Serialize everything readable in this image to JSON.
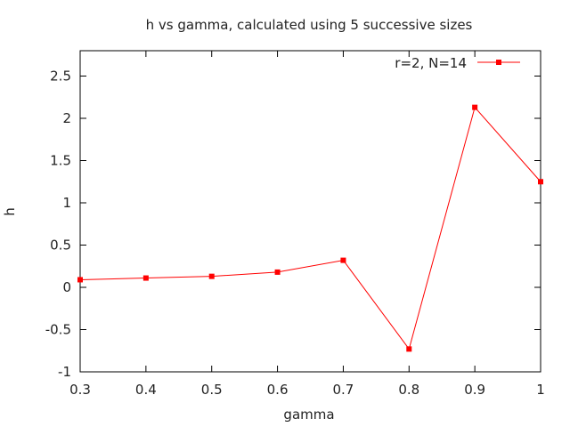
{
  "chart_data": {
    "type": "line",
    "title": "h vs gamma, calculated using 5 successive sizes",
    "xlabel": "gamma",
    "ylabel": "h",
    "xlim": [
      0.3,
      1.0
    ],
    "ylim": [
      -1.0,
      2.8
    ],
    "x_ticks": [
      0.3,
      0.4,
      0.5,
      0.6,
      0.7,
      0.8,
      0.9,
      1.0
    ],
    "x_tick_labels": [
      "0.3",
      "0.4",
      "0.5",
      "0.6",
      "0.7",
      "0.8",
      "0.9",
      "1"
    ],
    "y_ticks": [
      -1.0,
      -0.5,
      0.0,
      0.5,
      1.0,
      1.5,
      2.0,
      2.5
    ],
    "y_tick_labels": [
      "-1",
      "-0.5",
      "0",
      "0.5",
      "1",
      "1.5",
      "2",
      "2.5"
    ],
    "grid": false,
    "legend_position": "top-right",
    "series": [
      {
        "name": "r=2, N=14",
        "color": "#ff0000",
        "marker": "square",
        "x": [
          0.3,
          0.4,
          0.5,
          0.6,
          0.7,
          0.8,
          0.9,
          1.0
        ],
        "y": [
          0.09,
          0.11,
          0.13,
          0.18,
          0.32,
          -0.73,
          2.13,
          1.25
        ]
      }
    ]
  }
}
